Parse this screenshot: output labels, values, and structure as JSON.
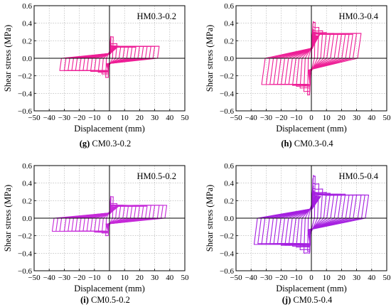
{
  "figure": {
    "charts": [
      {
        "caption_letter": "(g)",
        "caption_text": " CM0.3-0.2"
      },
      {
        "caption_letter": "(h)",
        "caption_text": " CM0.3-0.4"
      },
      {
        "caption_letter": "(i)",
        "caption_text": " CM0.5-0.2"
      },
      {
        "caption_letter": "(j)",
        "caption_text": " CM0.5-0.4"
      }
    ]
  },
  "chart_data": [
    {
      "type": "line",
      "title": "HM0.3-0.2",
      "xlabel": "Displacement (mm)",
      "ylabel": "Shear stress  (MPa)",
      "xlim": [
        -50,
        50
      ],
      "ylim": [
        -0.6,
        0.6
      ],
      "xticks": [
        -50,
        -40,
        -30,
        -20,
        -10,
        0,
        10,
        20,
        30,
        40,
        50
      ],
      "xtick_labels": [
        "−50",
        "−40",
        "−30",
        "−20",
        "−10",
        "0",
        "10",
        "20",
        "30",
        "40",
        "50"
      ],
      "yticks": [
        -0.6,
        -0.4,
        -0.2,
        0.0,
        0.2,
        0.4,
        0.6
      ],
      "ytick_labels": [
        "−0.6",
        "−0.4",
        "−0.2",
        "0.0",
        "0.2",
        "0.4",
        "0.6"
      ],
      "grid": true,
      "color": "#ee1e96",
      "cycles": [
        {
          "amplitude": 2.5,
          "stress_pos": 0.25,
          "stress_neg": -0.22
        },
        {
          "amplitude": 5,
          "stress_pos": 0.17,
          "stress_neg": -0.18
        },
        {
          "amplitude": 7.5,
          "stress_pos": 0.14,
          "stress_neg": -0.16
        },
        {
          "amplitude": 10,
          "stress_pos": 0.13,
          "stress_neg": -0.15
        },
        {
          "amplitude": 12.5,
          "stress_pos": 0.13,
          "stress_neg": -0.15
        },
        {
          "amplitude": 15,
          "stress_pos": 0.13,
          "stress_neg": -0.14
        },
        {
          "amplitude": 17.5,
          "stress_pos": 0.13,
          "stress_neg": -0.14
        },
        {
          "amplitude": 20,
          "stress_pos": 0.14,
          "stress_neg": -0.14
        },
        {
          "amplitude": 22.5,
          "stress_pos": 0.14,
          "stress_neg": -0.14
        },
        {
          "amplitude": 25,
          "stress_pos": 0.14,
          "stress_neg": -0.14
        },
        {
          "amplitude": 27.5,
          "stress_pos": 0.14,
          "stress_neg": -0.14
        },
        {
          "amplitude": 30,
          "stress_pos": 0.14,
          "stress_neg": -0.14
        },
        {
          "amplitude": 33,
          "stress_pos": 0.14,
          "stress_neg": -0.14
        }
      ]
    },
    {
      "type": "line",
      "title": "HM0.3-0.4",
      "xlabel": "Displacement (mm)",
      "ylabel": "Shear stress  (MPa)",
      "xlim": [
        -50,
        50
      ],
      "ylim": [
        -0.6,
        0.6
      ],
      "xticks": [
        -50,
        -40,
        -30,
        -20,
        -10,
        0,
        10,
        20,
        30,
        40,
        50
      ],
      "xtick_labels": [
        "−50",
        "−40",
        "−30",
        "−20",
        "−10",
        "0",
        "10",
        "20",
        "30",
        "40",
        "50"
      ],
      "yticks": [
        -0.6,
        -0.4,
        -0.2,
        0.0,
        0.2,
        0.4,
        0.6
      ],
      "ytick_labels": [
        "−0.6",
        "−0.4",
        "−0.2",
        "0.0",
        "0.2",
        "0.4",
        "0.6"
      ],
      "grid": true,
      "color": "#ee1e96",
      "cycles": [
        {
          "amplitude": 2.5,
          "stress_pos": 0.42,
          "stress_neg": -0.42
        },
        {
          "amplitude": 5,
          "stress_pos": 0.36,
          "stress_neg": -0.38
        },
        {
          "amplitude": 7.5,
          "stress_pos": 0.32,
          "stress_neg": -0.34
        },
        {
          "amplitude": 10,
          "stress_pos": 0.3,
          "stress_neg": -0.32
        },
        {
          "amplitude": 12.5,
          "stress_pos": 0.29,
          "stress_neg": -0.31
        },
        {
          "amplitude": 15,
          "stress_pos": 0.29,
          "stress_neg": -0.3
        },
        {
          "amplitude": 17.5,
          "stress_pos": 0.28,
          "stress_neg": -0.3
        },
        {
          "amplitude": 20,
          "stress_pos": 0.28,
          "stress_neg": -0.3
        },
        {
          "amplitude": 22.5,
          "stress_pos": 0.28,
          "stress_neg": -0.3
        },
        {
          "amplitude": 25,
          "stress_pos": 0.28,
          "stress_neg": -0.3
        },
        {
          "amplitude": 27.5,
          "stress_pos": 0.28,
          "stress_neg": -0.3
        },
        {
          "amplitude": 30,
          "stress_pos": 0.29,
          "stress_neg": -0.3
        },
        {
          "amplitude": 33,
          "stress_pos": 0.29,
          "stress_neg": -0.3
        }
      ]
    },
    {
      "type": "line",
      "title": "HM0.5-0.2",
      "xlabel": "Displacement (mm)",
      "ylabel": "Shear stress  (MPa)",
      "xlim": [
        -50,
        50
      ],
      "ylim": [
        -0.6,
        0.6
      ],
      "xticks": [
        -50,
        -40,
        -30,
        -20,
        -10,
        0,
        10,
        20,
        30,
        40,
        50
      ],
      "xtick_labels": [
        "−50",
        "−40",
        "−30",
        "−20",
        "−10",
        "0",
        "10",
        "20",
        "30",
        "40",
        "50"
      ],
      "yticks": [
        -0.6,
        -0.4,
        -0.2,
        0.0,
        0.2,
        0.4,
        0.6
      ],
      "ytick_labels": [
        "−0.6",
        "−0.4",
        "−0.2",
        "0.0",
        "0.2",
        "0.4",
        "0.6"
      ],
      "grid": true,
      "color": "#c62ad9",
      "cycles": [
        {
          "amplitude": 2.5,
          "stress_pos": 0.25,
          "stress_neg": -0.2
        },
        {
          "amplitude": 5,
          "stress_pos": 0.17,
          "stress_neg": -0.17
        },
        {
          "amplitude": 7.5,
          "stress_pos": 0.15,
          "stress_neg": -0.16
        },
        {
          "amplitude": 10,
          "stress_pos": 0.14,
          "stress_neg": -0.16
        },
        {
          "amplitude": 12.5,
          "stress_pos": 0.14,
          "stress_neg": -0.15
        },
        {
          "amplitude": 15,
          "stress_pos": 0.14,
          "stress_neg": -0.15
        },
        {
          "amplitude": 17.5,
          "stress_pos": 0.14,
          "stress_neg": -0.15
        },
        {
          "amplitude": 20,
          "stress_pos": 0.14,
          "stress_neg": -0.15
        },
        {
          "amplitude": 22.5,
          "stress_pos": 0.14,
          "stress_neg": -0.15
        },
        {
          "amplitude": 25,
          "stress_pos": 0.14,
          "stress_neg": -0.15
        },
        {
          "amplitude": 27.5,
          "stress_pos": 0.15,
          "stress_neg": -0.15
        },
        {
          "amplitude": 30,
          "stress_pos": 0.15,
          "stress_neg": -0.15
        },
        {
          "amplitude": 33,
          "stress_pos": 0.15,
          "stress_neg": -0.15
        },
        {
          "amplitude": 35.5,
          "stress_pos": 0.15,
          "stress_neg": -0.15
        },
        {
          "amplitude": 38,
          "stress_pos": 0.15,
          "stress_neg": -0.15
        }
      ]
    },
    {
      "type": "line",
      "title": "HM0.5-0.4",
      "xlabel": "Displacement (mm)",
      "ylabel": "Shear stress  (MPa)",
      "xlim": [
        -50,
        50
      ],
      "ylim": [
        -0.6,
        0.6
      ],
      "xticks": [
        -50,
        -40,
        -30,
        -20,
        -10,
        0,
        10,
        20,
        30,
        40,
        50
      ],
      "xtick_labels": [
        "−50",
        "−40",
        "−30",
        "−20",
        "−10",
        "0",
        "10",
        "20",
        "30",
        "40",
        "50"
      ],
      "yticks": [
        -0.6,
        -0.4,
        -0.2,
        0.0,
        0.2,
        0.4,
        0.6
      ],
      "ytick_labels": [
        "−0.6",
        "−0.4",
        "−0.2",
        "0.0",
        "0.2",
        "0.4",
        "0.6"
      ],
      "grid": true,
      "color": "#a51fe0",
      "cycles": [
        {
          "amplitude": 2.5,
          "stress_pos": 0.49,
          "stress_neg": -0.38
        },
        {
          "amplitude": 5,
          "stress_pos": 0.4,
          "stress_neg": -0.4
        },
        {
          "amplitude": 7.5,
          "stress_pos": 0.34,
          "stress_neg": -0.36
        },
        {
          "amplitude": 10,
          "stress_pos": 0.3,
          "stress_neg": -0.33
        },
        {
          "amplitude": 12.5,
          "stress_pos": 0.29,
          "stress_neg": -0.32
        },
        {
          "amplitude": 15,
          "stress_pos": 0.28,
          "stress_neg": -0.31
        },
        {
          "amplitude": 17.5,
          "stress_pos": 0.28,
          "stress_neg": -0.31
        },
        {
          "amplitude": 20,
          "stress_pos": 0.28,
          "stress_neg": -0.31
        },
        {
          "amplitude": 22.5,
          "stress_pos": 0.28,
          "stress_neg": -0.3
        },
        {
          "amplitude": 25,
          "stress_pos": 0.27,
          "stress_neg": -0.3
        },
        {
          "amplitude": 27.5,
          "stress_pos": 0.27,
          "stress_neg": -0.3
        },
        {
          "amplitude": 30,
          "stress_pos": 0.27,
          "stress_neg": -0.3
        },
        {
          "amplitude": 33,
          "stress_pos": 0.27,
          "stress_neg": -0.3
        },
        {
          "amplitude": 35.5,
          "stress_pos": 0.27,
          "stress_neg": -0.29
        },
        {
          "amplitude": 38,
          "stress_pos": 0.27,
          "stress_neg": -0.3
        }
      ]
    }
  ]
}
